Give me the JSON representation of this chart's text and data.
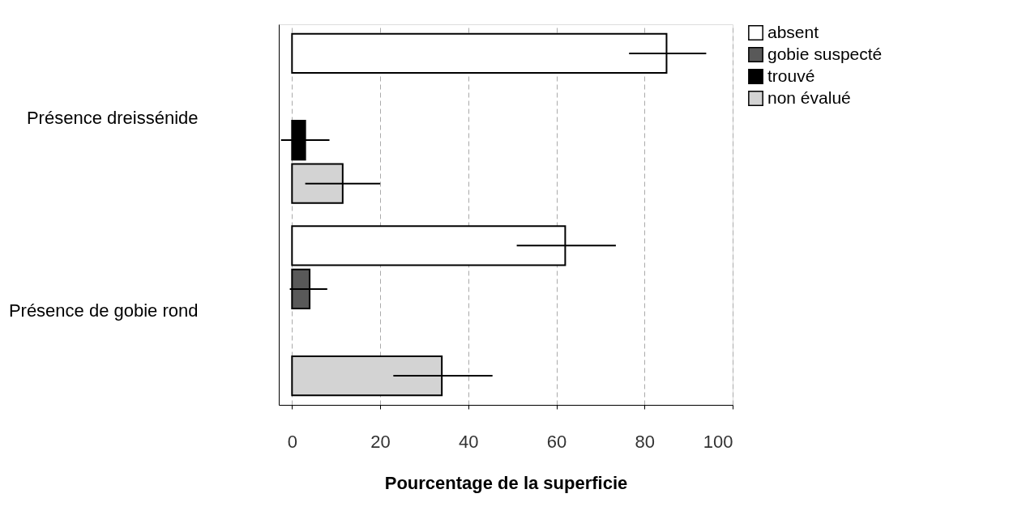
{
  "chart_data": {
    "type": "bar",
    "orientation": "horizontal",
    "categories": [
      "Présence dreissénide",
      "Présence de gobie rond"
    ],
    "series": [
      {
        "name": "absent",
        "color": "#ffffff",
        "values": [
          85,
          62
        ],
        "errors": [
          [
            76.5,
            94
          ],
          [
            51,
            73.5
          ]
        ]
      },
      {
        "name": "gobie suspecté",
        "color": "#595959",
        "values": [
          null,
          4
        ],
        "errors": [
          null,
          [
            -0.5,
            8
          ]
        ]
      },
      {
        "name": "trouvé",
        "color": "#000000",
        "values": [
          3,
          null
        ],
        "errors": [
          [
            -2.5,
            8.5
          ],
          null
        ]
      },
      {
        "name": "non évalué",
        "color": "#d3d3d3",
        "values": [
          11.5,
          34
        ],
        "errors": [
          [
            3,
            20
          ],
          [
            23,
            45.5
          ]
        ]
      }
    ],
    "xlabel": "Pourcentage de la superficie",
    "xlim": [
      -3,
      100
    ],
    "xticks": [
      0,
      20,
      40,
      60,
      80,
      100
    ],
    "grid": "x",
    "legend": "right"
  }
}
